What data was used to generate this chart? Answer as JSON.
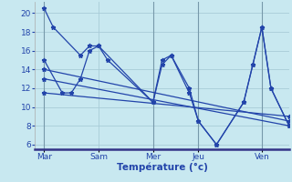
{
  "background_color": "#c8e8f0",
  "grid_color": "#a8ccd8",
  "line_color": "#2244aa",
  "xlabel": "Température (°c)",
  "yticks": [
    6,
    8,
    10,
    12,
    14,
    16,
    18,
    20
  ],
  "ylim": [
    5.5,
    21.2
  ],
  "xlim": [
    0,
    14.0
  ],
  "vline_color": "#7799aa",
  "vlines": [
    0.5,
    6.5,
    9.0,
    12.5
  ],
  "day_ticks": [
    0.5,
    3.5,
    6.5,
    9.0,
    12.5
  ],
  "day_labels": [
    "Mar",
    "Sam",
    "Mer",
    "Jeu",
    "Ven"
  ],
  "s1x": [
    0.5,
    1.0,
    2.5,
    3.0,
    3.5,
    4.0,
    6.5,
    7.0,
    7.5,
    8.5,
    9.0,
    10.0,
    11.5,
    12.0,
    12.5,
    13.0,
    14.0
  ],
  "s1y": [
    20.5,
    18.5,
    15.5,
    16.5,
    16.5,
    15.0,
    10.5,
    15.0,
    15.5,
    11.5,
    8.5,
    6.0,
    10.5,
    14.5,
    18.5,
    12.0,
    8.0
  ],
  "s2x": [
    0.5,
    1.5,
    2.0,
    2.5,
    3.0,
    3.5,
    6.5,
    7.0,
    7.5,
    8.5,
    9.0,
    10.0,
    11.5,
    12.0,
    12.5,
    13.0,
    14.0
  ],
  "s2y": [
    15.0,
    11.5,
    11.5,
    13.0,
    16.0,
    16.5,
    10.5,
    14.5,
    15.5,
    12.0,
    8.5,
    6.0,
    10.5,
    14.5,
    18.5,
    12.0,
    8.0
  ],
  "s3x": [
    0.5,
    14.0
  ],
  "s3y": [
    14.0,
    8.5
  ],
  "s4x": [
    0.5,
    14.0
  ],
  "s4y": [
    13.0,
    8.0
  ],
  "s5x": [
    0.5,
    14.0
  ],
  "s5y": [
    11.5,
    9.0
  ]
}
